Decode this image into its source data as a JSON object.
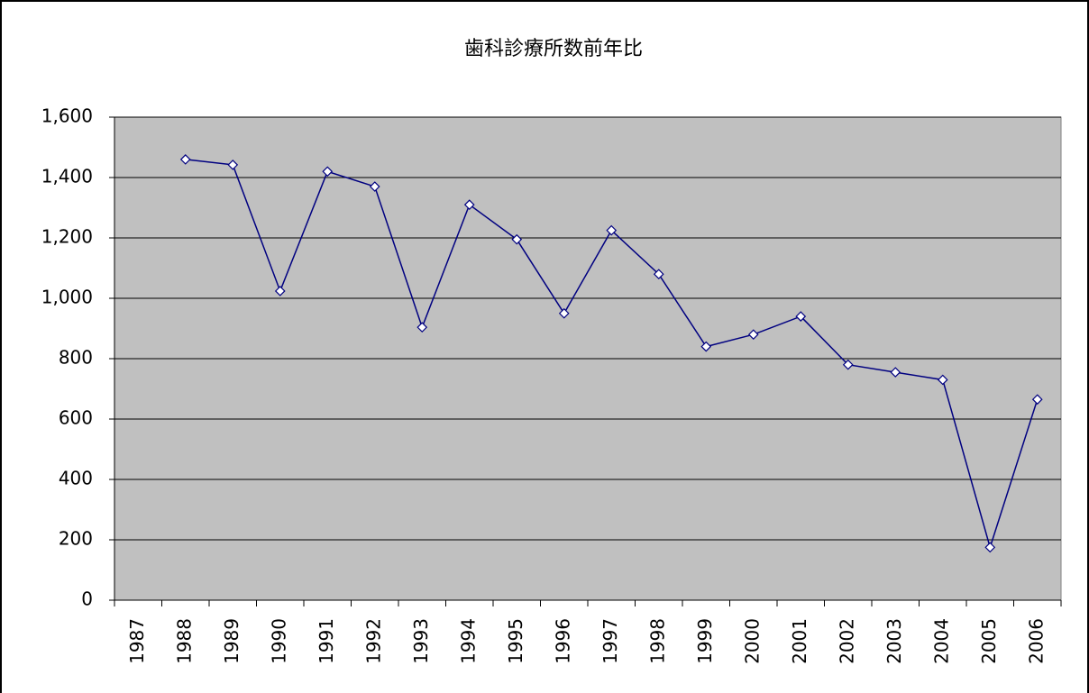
{
  "chart_data": {
    "type": "line",
    "title": "歯科診療所数前年比",
    "categories": [
      "1987",
      "1988",
      "1989",
      "1990",
      "1991",
      "1992",
      "1993",
      "1994",
      "1995",
      "1996",
      "1997",
      "1998",
      "1999",
      "2000",
      "2001",
      "2002",
      "2003",
      "2004",
      "2005",
      "2006"
    ],
    "values": [
      null,
      1460,
      1442,
      1024,
      1420,
      1370,
      904,
      1310,
      1195,
      950,
      1225,
      1080,
      840,
      880,
      940,
      780,
      755,
      730,
      175,
      665
    ],
    "color": "#000080",
    "marker": "diamond",
    "plot_background": "#c0c0c0",
    "ylim": [
      0,
      1600
    ],
    "yticks": [
      0,
      200,
      400,
      600,
      800,
      {
        "value": 1000,
        "label": "1,000"
      },
      {
        "value": 1200,
        "label": "1,200"
      },
      {
        "value": 1400,
        "label": "1,400"
      },
      {
        "value": 1600,
        "label": "1,600"
      }
    ],
    "grid": true
  }
}
